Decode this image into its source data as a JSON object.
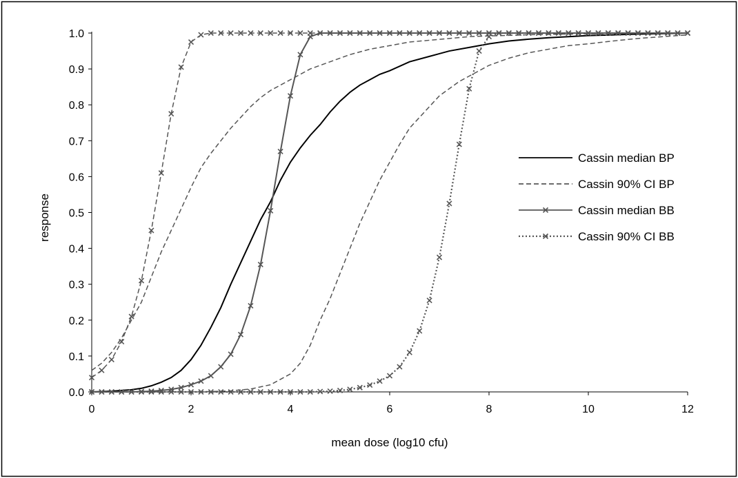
{
  "chart_data": {
    "type": "line",
    "title": "",
    "xlabel": "mean dose (log10 cfu)",
    "ylabel": "response",
    "xlim": [
      0,
      12
    ],
    "ylim": [
      0,
      1
    ],
    "xticks": [
      0,
      2,
      4,
      6,
      8,
      10,
      12
    ],
    "xtick_labels": [
      "0",
      "2",
      "4",
      "6",
      "8",
      "10",
      "12"
    ],
    "yticks": [
      0,
      0.1,
      0.2,
      0.3,
      0.4,
      0.5,
      0.6,
      0.7,
      0.8,
      0.9,
      1.0
    ],
    "ytick_labels": [
      "0.0",
      "0.1",
      "0.2",
      "0.3",
      "0.4",
      "0.5",
      "0.6",
      "0.7",
      "0.8",
      "0.9",
      "1.0"
    ],
    "grid": false,
    "legend_position": "right",
    "series": [
      {
        "name": "Cassin median BP",
        "style": "solid",
        "color": "#000000",
        "marker": "none",
        "x": [
          0,
          0.2,
          0.4,
          0.6,
          0.8,
          1.0,
          1.2,
          1.4,
          1.6,
          1.8,
          2.0,
          2.2,
          2.4,
          2.6,
          2.8,
          3.0,
          3.2,
          3.4,
          3.6,
          3.8,
          4.0,
          4.2,
          4.4,
          4.6,
          4.8,
          5.0,
          5.2,
          5.4,
          5.6,
          5.8,
          6.0,
          6.4,
          6.8,
          7.2,
          7.6,
          8.0,
          8.4,
          8.8,
          9.2,
          9.6,
          10.0,
          11.0,
          12.0
        ],
        "y": [
          0.0,
          0.001,
          0.002,
          0.004,
          0.006,
          0.01,
          0.017,
          0.027,
          0.04,
          0.06,
          0.09,
          0.13,
          0.18,
          0.235,
          0.3,
          0.36,
          0.42,
          0.48,
          0.53,
          0.59,
          0.64,
          0.68,
          0.715,
          0.745,
          0.78,
          0.81,
          0.835,
          0.855,
          0.87,
          0.885,
          0.895,
          0.92,
          0.935,
          0.95,
          0.96,
          0.97,
          0.978,
          0.983,
          0.987,
          0.99,
          0.993,
          0.997,
          1.0
        ]
      },
      {
        "name": "Cassin 90% CI BP",
        "style": "dashed",
        "color": "#555555",
        "marker": "none",
        "x": [
          0,
          0.2,
          0.4,
          0.6,
          0.8,
          1.0,
          1.2,
          1.4,
          1.6,
          1.8,
          2.0,
          2.2,
          2.4,
          2.6,
          2.8,
          3.0,
          3.2,
          3.4,
          3.6,
          3.8,
          4.0,
          4.4,
          4.8,
          5.2,
          5.6,
          6.0,
          6.4,
          6.8,
          7.2,
          7.6,
          8.0,
          8.5,
          9.0,
          9.5,
          10.0,
          11.0,
          12.0
        ],
        "y": [
          0.06,
          0.08,
          0.11,
          0.15,
          0.2,
          0.25,
          0.32,
          0.39,
          0.45,
          0.51,
          0.57,
          0.625,
          0.665,
          0.7,
          0.735,
          0.765,
          0.795,
          0.82,
          0.84,
          0.855,
          0.87,
          0.9,
          0.92,
          0.94,
          0.955,
          0.965,
          0.975,
          0.98,
          0.985,
          0.99,
          0.992,
          0.994,
          0.996,
          0.997,
          0.998,
          0.999,
          1.0
        ]
      },
      {
        "name": "Cassin 90% CI BP",
        "style": "dashed",
        "color": "#555555",
        "marker": "none",
        "x": [
          0,
          1.0,
          2.0,
          2.4,
          2.8,
          3.2,
          3.6,
          4.0,
          4.2,
          4.4,
          4.6,
          4.8,
          5.0,
          5.2,
          5.4,
          5.6,
          5.8,
          6.0,
          6.2,
          6.4,
          6.6,
          6.8,
          7.0,
          7.2,
          7.4,
          7.6,
          7.8,
          8.0,
          8.4,
          8.8,
          9.2,
          9.6,
          10.0,
          10.5,
          11.0,
          11.5,
          12.0
        ],
        "y": [
          0.0,
          0.0,
          0.0,
          0.001,
          0.003,
          0.008,
          0.02,
          0.05,
          0.08,
          0.13,
          0.2,
          0.26,
          0.33,
          0.4,
          0.47,
          0.53,
          0.59,
          0.64,
          0.69,
          0.735,
          0.765,
          0.795,
          0.825,
          0.845,
          0.865,
          0.88,
          0.895,
          0.91,
          0.93,
          0.945,
          0.955,
          0.965,
          0.97,
          0.978,
          0.985,
          0.99,
          0.995
        ]
      },
      {
        "name": "Cassin median BB",
        "style": "solid",
        "color": "#555555",
        "marker": "x",
        "x": [
          0,
          0.2,
          0.4,
          0.6,
          0.8,
          1.0,
          1.2,
          1.4,
          1.6,
          1.8,
          2.0,
          2.2,
          2.4,
          2.6,
          2.8,
          3.0,
          3.2,
          3.4,
          3.6,
          3.8,
          4.0,
          4.2,
          4.4,
          4.6,
          4.8,
          5.0,
          5.2,
          5.4,
          5.6,
          5.8,
          6.0,
          6.2,
          6.4,
          6.6,
          6.8,
          7.0,
          7.2,
          7.4,
          7.6,
          7.8,
          8.0,
          8.2,
          8.4,
          8.6,
          8.8,
          9.0,
          9.2,
          9.4,
          9.6,
          9.8,
          10.0,
          10.2,
          10.4,
          10.6,
          10.8,
          11.0,
          11.2,
          11.4,
          11.6,
          11.8,
          12.0
        ],
        "y": [
          0.0,
          0.0,
          0.0,
          0.0,
          0.0,
          0.001,
          0.002,
          0.004,
          0.007,
          0.012,
          0.02,
          0.03,
          0.045,
          0.07,
          0.105,
          0.16,
          0.24,
          0.355,
          0.505,
          0.67,
          0.825,
          0.94,
          0.99,
          1.0,
          1.0,
          1.0,
          1.0,
          1.0,
          1.0,
          1.0,
          1.0,
          1.0,
          1.0,
          1.0,
          1.0,
          1.0,
          1.0,
          1.0,
          1.0,
          1.0,
          1.0,
          1.0,
          1.0,
          1.0,
          1.0,
          1.0,
          1.0,
          1.0,
          1.0,
          1.0,
          1.0,
          1.0,
          1.0,
          1.0,
          1.0,
          1.0,
          1.0,
          1.0,
          1.0,
          1.0,
          1.0
        ]
      },
      {
        "name": "Cassin 90% CI BB",
        "style": "dashed",
        "color": "#555555",
        "marker": "x",
        "x": [
          0,
          0.2,
          0.4,
          0.6,
          0.8,
          1.0,
          1.2,
          1.4,
          1.6,
          1.8,
          2.0,
          2.2,
          2.4,
          2.6,
          2.8,
          3.0,
          3.2,
          3.4,
          3.6,
          3.8,
          4.0,
          4.2,
          4.4,
          4.6,
          4.8,
          5.0,
          5.2,
          5.4,
          5.6,
          5.8,
          6.0,
          6.2,
          6.4,
          6.6,
          6.8,
          7.0,
          7.2,
          7.4,
          7.6,
          7.8,
          8.0,
          8.2,
          8.4,
          8.6,
          8.8,
          9.0,
          9.2,
          9.4,
          9.6,
          9.8,
          10.0,
          10.2,
          10.4,
          10.6,
          10.8,
          11.0,
          11.2,
          11.4,
          11.6,
          11.8,
          12.0
        ],
        "y": [
          0.04,
          0.06,
          0.09,
          0.14,
          0.21,
          0.31,
          0.45,
          0.61,
          0.775,
          0.905,
          0.975,
          0.995,
          1.0,
          1.0,
          1.0,
          1.0,
          1.0,
          1.0,
          1.0,
          1.0,
          1.0,
          1.0,
          1.0,
          1.0,
          1.0,
          1.0,
          1.0,
          1.0,
          1.0,
          1.0,
          1.0,
          1.0,
          1.0,
          1.0,
          1.0,
          1.0,
          1.0,
          1.0,
          1.0,
          1.0,
          1.0,
          1.0,
          1.0,
          1.0,
          1.0,
          1.0,
          1.0,
          1.0,
          1.0,
          1.0,
          1.0,
          1.0,
          1.0,
          1.0,
          1.0,
          1.0,
          1.0,
          1.0,
          1.0,
          1.0,
          1.0
        ]
      },
      {
        "name": "Cassin 90% CI BB",
        "style": "dotted",
        "color": "#555555",
        "marker": "x",
        "x": [
          0,
          0.2,
          0.4,
          0.6,
          0.8,
          1.0,
          1.2,
          1.4,
          1.6,
          1.8,
          2.0,
          2.2,
          2.4,
          2.6,
          2.8,
          3.0,
          3.2,
          3.4,
          3.6,
          3.8,
          4.0,
          4.2,
          4.4,
          4.6,
          4.8,
          5.0,
          5.2,
          5.4,
          5.6,
          5.8,
          6.0,
          6.2,
          6.4,
          6.6,
          6.8,
          7.0,
          7.2,
          7.4,
          7.6,
          7.8,
          8.0,
          8.2,
          8.4,
          8.6,
          8.8,
          9.0,
          9.2,
          9.4,
          9.6,
          9.8,
          10.0,
          10.2,
          10.4,
          10.6,
          10.8,
          11.0,
          11.2,
          11.4,
          11.6,
          11.8,
          12.0
        ],
        "y": [
          0.0,
          0.0,
          0.0,
          0.0,
          0.0,
          0.0,
          0.0,
          0.0,
          0.0,
          0.0,
          0.0,
          0.0,
          0.0,
          0.0,
          0.0,
          0.0,
          0.0,
          0.0,
          0.0,
          0.0,
          0.0,
          0.0,
          0.0,
          0.001,
          0.002,
          0.004,
          0.007,
          0.012,
          0.019,
          0.03,
          0.045,
          0.07,
          0.11,
          0.17,
          0.255,
          0.375,
          0.525,
          0.69,
          0.845,
          0.95,
          0.99,
          1.0,
          1.0,
          1.0,
          1.0,
          1.0,
          1.0,
          1.0,
          1.0,
          1.0,
          1.0,
          1.0,
          1.0,
          1.0,
          1.0,
          1.0,
          1.0,
          1.0,
          1.0,
          1.0,
          1.0
        ]
      }
    ],
    "legend": [
      {
        "label": "Cassin median BP",
        "style": "solid",
        "color": "#000000",
        "marker": "none"
      },
      {
        "label": "Cassin 90% CI BP",
        "style": "dashed",
        "color": "#555555",
        "marker": "none"
      },
      {
        "label": "Cassin median BB",
        "style": "solid",
        "color": "#555555",
        "marker": "x"
      },
      {
        "label": "Cassin 90% CI BB",
        "style": "dotted",
        "color": "#555555",
        "marker": "x"
      }
    ]
  }
}
